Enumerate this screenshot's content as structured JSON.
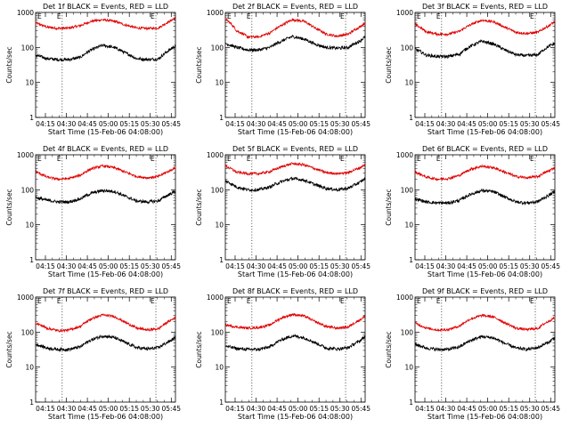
{
  "ticks_x": [
    "04:15",
    "04:30",
    "04:45",
    "05:00",
    "05:15",
    "05:30",
    "05:45"
  ],
  "ticks_y": [
    "1",
    "10",
    "100",
    "1000"
  ],
  "marker_label": "E",
  "xlabel": "Start Time (15-Feb-06 04:08:00)",
  "ylabel": "Counts/sec",
  "colors": {
    "events": "#000000",
    "lld": "#e00000"
  },
  "chart_data": [
    {
      "type": "line",
      "title": "Det 1f BLACK = Events, RED = LLD",
      "x_unit": "minutes after 04:08:00",
      "xlim": [
        0,
        100
      ],
      "ylim": [
        1,
        1000
      ],
      "y_scale": "log",
      "markers_x": [
        19,
        86
      ],
      "series": [
        {
          "key": "events",
          "x": [
            0,
            8,
            16,
            24,
            32,
            40,
            48,
            56,
            64,
            72,
            80,
            88,
            96,
            100
          ],
          "values": [
            60,
            48,
            45,
            45,
            52,
            85,
            115,
            100,
            70,
            48,
            45,
            47,
            85,
            110
          ]
        },
        {
          "key": "lld",
          "x": [
            0,
            8,
            16,
            24,
            32,
            40,
            48,
            56,
            64,
            72,
            80,
            88,
            96,
            100
          ],
          "values": [
            500,
            380,
            350,
            360,
            420,
            560,
            620,
            560,
            440,
            360,
            350,
            360,
            560,
            700
          ]
        }
      ]
    },
    {
      "type": "line",
      "title": "Det 2f BLACK = Events, RED = LLD",
      "x_unit": "minutes after 04:08:00",
      "xlim": [
        0,
        100
      ],
      "ylim": [
        1,
        1000
      ],
      "y_scale": "log",
      "markers_x": [
        19,
        86
      ],
      "series": [
        {
          "key": "events",
          "x": [
            0,
            8,
            16,
            24,
            32,
            40,
            48,
            56,
            64,
            72,
            80,
            88,
            96,
            100
          ],
          "values": [
            130,
            100,
            85,
            85,
            100,
            150,
            205,
            175,
            125,
            100,
            95,
            100,
            150,
            200
          ]
        },
        {
          "key": "lld",
          "x": [
            0,
            8,
            16,
            24,
            32,
            40,
            48,
            56,
            64,
            72,
            80,
            88,
            96,
            100
          ],
          "values": [
            650,
            300,
            200,
            200,
            260,
            420,
            620,
            560,
            360,
            240,
            210,
            240,
            380,
            500
          ]
        }
      ]
    },
    {
      "type": "line",
      "title": "Det 3f BLACK = Events, RED = LLD",
      "x_unit": "minutes after 04:08:00",
      "xlim": [
        0,
        100
      ],
      "ylim": [
        1,
        1000
      ],
      "y_scale": "log",
      "markers_x": [
        19,
        86
      ],
      "series": [
        {
          "key": "events",
          "x": [
            0,
            8,
            16,
            24,
            32,
            40,
            48,
            56,
            64,
            72,
            80,
            88,
            96,
            100
          ],
          "values": [
            90,
            60,
            55,
            55,
            65,
            110,
            150,
            125,
            85,
            62,
            58,
            62,
            110,
            130
          ]
        },
        {
          "key": "lld",
          "x": [
            0,
            8,
            16,
            24,
            32,
            40,
            48,
            56,
            64,
            72,
            80,
            88,
            96,
            100
          ],
          "values": [
            450,
            280,
            240,
            240,
            290,
            450,
            600,
            540,
            380,
            270,
            250,
            270,
            420,
            550
          ]
        }
      ]
    },
    {
      "type": "line",
      "title": "Det 4f BLACK = Events, RED = LLD",
      "x_unit": "minutes after 04:08:00",
      "xlim": [
        0,
        100
      ],
      "ylim": [
        1,
        1000
      ],
      "y_scale": "log",
      "markers_x": [
        19,
        86
      ],
      "series": [
        {
          "key": "events",
          "x": [
            0,
            8,
            16,
            24,
            32,
            40,
            48,
            56,
            64,
            72,
            80,
            88,
            96,
            100
          ],
          "values": [
            60,
            50,
            45,
            45,
            55,
            80,
            95,
            90,
            65,
            48,
            45,
            48,
            75,
            90
          ]
        },
        {
          "key": "lld",
          "x": [
            0,
            8,
            16,
            24,
            32,
            40,
            48,
            56,
            64,
            72,
            80,
            88,
            96,
            100
          ],
          "values": [
            330,
            230,
            200,
            210,
            260,
            400,
            480,
            430,
            320,
            240,
            220,
            240,
            350,
            430
          ]
        }
      ]
    },
    {
      "type": "line",
      "title": "Det 5f BLACK = Events, RED = LLD",
      "x_unit": "minutes after 04:08:00",
      "xlim": [
        0,
        100
      ],
      "ylim": [
        1,
        1000
      ],
      "y_scale": "log",
      "markers_x": [
        19,
        86
      ],
      "series": [
        {
          "key": "events",
          "x": [
            0,
            8,
            16,
            24,
            32,
            40,
            48,
            56,
            64,
            72,
            80,
            88,
            96,
            100
          ],
          "values": [
            180,
            120,
            100,
            100,
            120,
            170,
            210,
            190,
            140,
            110,
            100,
            110,
            160,
            210
          ]
        },
        {
          "key": "lld",
          "x": [
            0,
            8,
            16,
            24,
            32,
            40,
            48,
            56,
            64,
            72,
            80,
            88,
            96,
            100
          ],
          "values": [
            480,
            320,
            290,
            290,
            330,
            450,
            560,
            520,
            400,
            310,
            290,
            310,
            420,
            520
          ]
        }
      ]
    },
    {
      "type": "line",
      "title": "Det 6f BLACK = Events, RED = LLD",
      "x_unit": "minutes after 04:08:00",
      "xlim": [
        0,
        100
      ],
      "ylim": [
        1,
        1000
      ],
      "y_scale": "log",
      "markers_x": [
        19,
        86
      ],
      "series": [
        {
          "key": "events",
          "x": [
            0,
            8,
            16,
            24,
            32,
            40,
            48,
            56,
            64,
            72,
            80,
            88,
            96,
            100
          ],
          "values": [
            55,
            45,
            42,
            42,
            50,
            75,
            95,
            88,
            62,
            45,
            42,
            46,
            70,
            90
          ]
        },
        {
          "key": "lld",
          "x": [
            0,
            8,
            16,
            24,
            32,
            40,
            48,
            56,
            64,
            72,
            80,
            88,
            96,
            100
          ],
          "values": [
            320,
            230,
            200,
            210,
            260,
            390,
            470,
            430,
            320,
            240,
            220,
            240,
            350,
            430
          ]
        }
      ]
    },
    {
      "type": "line",
      "title": "Det 7f BLACK = Events, RED = LLD",
      "x_unit": "minutes after 04:08:00",
      "xlim": [
        0,
        100
      ],
      "ylim": [
        1,
        1000
      ],
      "y_scale": "log",
      "markers_x": [
        19,
        86
      ],
      "series": [
        {
          "key": "events",
          "x": [
            0,
            8,
            16,
            24,
            32,
            40,
            48,
            56,
            64,
            72,
            80,
            88,
            96,
            100
          ],
          "values": [
            45,
            35,
            32,
            32,
            38,
            60,
            78,
            70,
            50,
            36,
            33,
            36,
            55,
            70
          ]
        },
        {
          "key": "lld",
          "x": [
            0,
            8,
            16,
            24,
            32,
            40,
            48,
            56,
            64,
            72,
            80,
            88,
            96,
            100
          ],
          "values": [
            180,
            130,
            110,
            115,
            145,
            240,
            310,
            280,
            190,
            130,
            115,
            125,
            210,
            260
          ]
        }
      ]
    },
    {
      "type": "line",
      "title": "Det 8f BLACK = Events, RED = LLD",
      "x_unit": "minutes after 04:08:00",
      "xlim": [
        0,
        100
      ],
      "ylim": [
        1,
        1000
      ],
      "y_scale": "log",
      "markers_x": [
        19,
        86
      ],
      "series": [
        {
          "key": "events",
          "x": [
            0,
            8,
            16,
            24,
            32,
            40,
            48,
            56,
            64,
            72,
            80,
            88,
            96,
            100
          ],
          "values": [
            40,
            34,
            32,
            32,
            38,
            60,
            78,
            70,
            50,
            35,
            33,
            36,
            55,
            75
          ]
        },
        {
          "key": "lld",
          "x": [
            0,
            8,
            16,
            24,
            32,
            40,
            48,
            56,
            64,
            72,
            80,
            88,
            96,
            100
          ],
          "values": [
            160,
            140,
            130,
            135,
            160,
            250,
            320,
            290,
            200,
            145,
            130,
            140,
            220,
            280
          ]
        }
      ]
    },
    {
      "type": "line",
      "title": "Det 9f BLACK = Events, RED = LLD",
      "x_unit": "minutes after 04:08:00",
      "xlim": [
        0,
        100
      ],
      "ylim": [
        1,
        1000
      ],
      "y_scale": "log",
      "markers_x": [
        19,
        86
      ],
      "series": [
        {
          "key": "events",
          "x": [
            0,
            8,
            16,
            24,
            32,
            40,
            48,
            56,
            64,
            72,
            80,
            88,
            96,
            100
          ],
          "values": [
            45,
            35,
            32,
            32,
            38,
            58,
            75,
            68,
            48,
            35,
            32,
            36,
            52,
            70
          ]
        },
        {
          "key": "lld",
          "x": [
            0,
            8,
            16,
            24,
            32,
            40,
            48,
            56,
            64,
            72,
            80,
            88,
            96,
            100
          ],
          "values": [
            180,
            130,
            115,
            118,
            150,
            240,
            300,
            270,
            185,
            130,
            118,
            128,
            210,
            260
          ]
        }
      ]
    }
  ]
}
